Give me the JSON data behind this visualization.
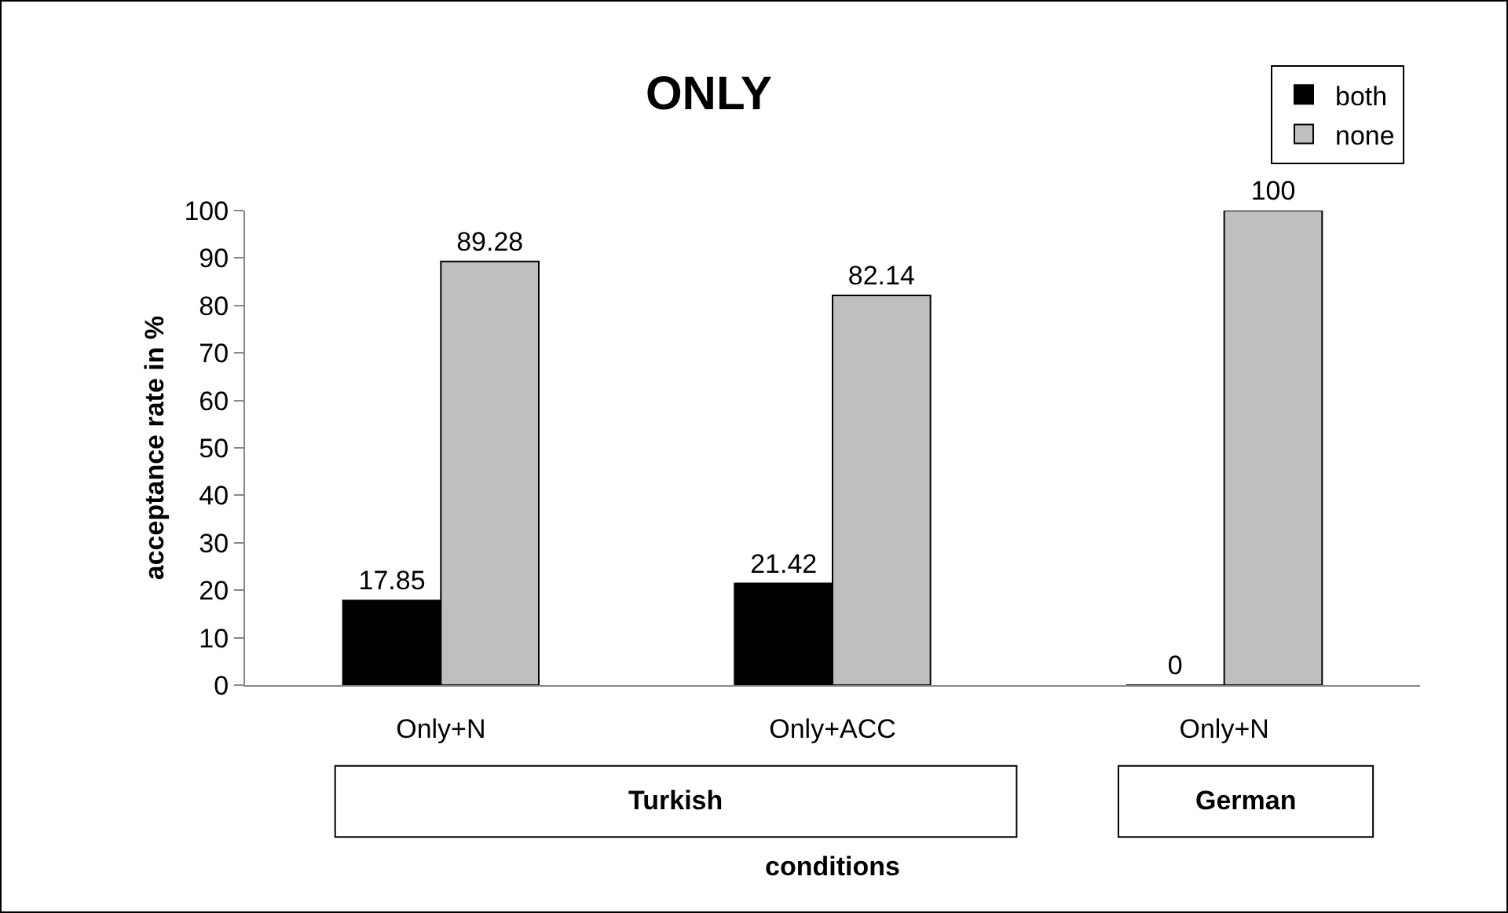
{
  "chart_data": {
    "type": "bar",
    "title": "ONLY",
    "xlabel": "conditions",
    "ylabel": "acceptance rate in %",
    "categories": [
      "Only+N",
      "Only+ACC",
      "Only+N"
    ],
    "series": [
      {
        "name": "both",
        "color": "#000000",
        "values": [
          17.85,
          21.42,
          0
        ]
      },
      {
        "name": "none",
        "color": "#bfbfbf",
        "values": [
          89.28,
          82.14,
          100
        ]
      }
    ],
    "annotations": [
      "Turkish",
      "German"
    ],
    "ylim": [
      0,
      100
    ],
    "yticks": [
      0,
      10,
      20,
      30,
      40,
      50,
      60,
      70,
      80,
      90,
      100
    ],
    "data_labels": true,
    "grid": false,
    "legend": "top right"
  }
}
